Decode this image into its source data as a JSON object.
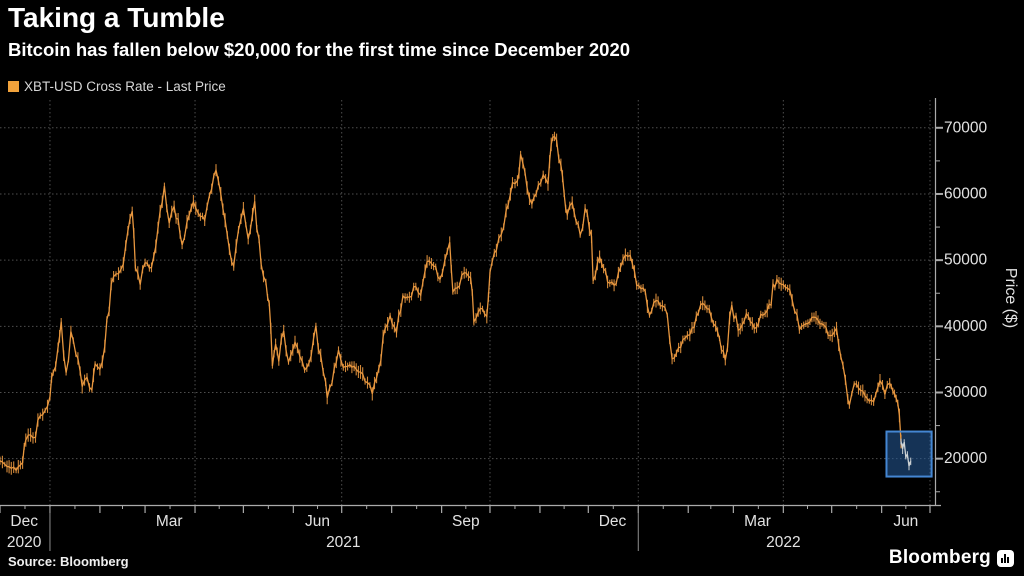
{
  "header": {
    "title": "Taking a Tumble",
    "subtitle": "Bitcoin has fallen below $20,000 for the first time since December 2020"
  },
  "legend": {
    "swatch_color": "#F1A23B",
    "label": "XBT-USD Cross Rate - Last Price"
  },
  "footer": {
    "source": "Source: Bloomberg",
    "brand": "Bloomberg"
  },
  "colors": {
    "background": "#000000",
    "series_orange": "#E8973F",
    "series_recent_gray": "#CDD2D4",
    "grid": "#4E4E4E",
    "axis": "#ABABAB",
    "tick_label": "#E2E2E2",
    "highlight_fill": "rgba(38,92,156,0.55)",
    "highlight_border": "#4486D2"
  },
  "chart_data": {
    "type": "line",
    "title": "XBT-USD Cross Rate - Last Price",
    "xlabel": "",
    "ylabel": "Price ($)",
    "ylim": [
      13000,
      74200
    ],
    "x_range": [
      "2020-12-01",
      "2022-07-01"
    ],
    "grid": true,
    "legend_position": "top-left",
    "y_ticks": [
      20000,
      30000,
      40000,
      50000,
      60000,
      70000
    ],
    "y_minor_ticks": [
      15000,
      25000,
      35000,
      45000,
      55000,
      65000
    ],
    "x_gridlines": [
      "2021-01-01",
      "2021-04-01",
      "2021-07-01",
      "2021-10-01",
      "2022-01-01",
      "2022-04-01",
      "2022-07-01"
    ],
    "x_labels": [
      {
        "text": "Dec",
        "date": "2020-12-16"
      },
      {
        "text": "Mar",
        "date": "2021-03-16"
      },
      {
        "text": "Jun",
        "date": "2021-06-16"
      },
      {
        "text": "Sep",
        "date": "2021-09-16"
      },
      {
        "text": "Dec",
        "date": "2021-12-16"
      },
      {
        "text": "Mar",
        "date": "2022-03-16"
      },
      {
        "text": "Jun",
        "date": "2022-06-16"
      }
    ],
    "x_years": [
      {
        "text": "2020",
        "date": "2020-12-16"
      },
      {
        "text": "2021",
        "date": "2021-07-02"
      },
      {
        "text": "2022",
        "date": "2022-04-01"
      }
    ],
    "year_dividers": [
      "2021-01-01",
      "2022-01-01"
    ],
    "highlight_box": {
      "from": "2022-06-04",
      "to": "2022-07-02",
      "top": 24100,
      "bottom": 17300,
      "note": "drop below $20,000"
    },
    "series": [
      {
        "name": "XBT-USD Cross Rate - Last Price",
        "color": "#E8973F",
        "recent_color": "#CDD2D4",
        "recent_from": "2022-06-13",
        "points": [
          [
            "2020-12-01",
            19700
          ],
          [
            "2020-12-04",
            19150
          ],
          [
            "2020-12-08",
            18550
          ],
          [
            "2020-12-11",
            18250
          ],
          [
            "2020-12-15",
            19400
          ],
          [
            "2020-12-17",
            22800
          ],
          [
            "2020-12-20",
            23600
          ],
          [
            "2020-12-23",
            23250
          ],
          [
            "2020-12-26",
            26500
          ],
          [
            "2020-12-29",
            27300
          ],
          [
            "2021-01-01",
            29400
          ],
          [
            "2021-01-03",
            33000
          ],
          [
            "2021-01-06",
            36800
          ],
          [
            "2021-01-08",
            40700
          ],
          [
            "2021-01-11",
            33000
          ],
          [
            "2021-01-14",
            39200
          ],
          [
            "2021-01-17",
            35800
          ],
          [
            "2021-01-21",
            30900
          ],
          [
            "2021-01-24",
            32300
          ],
          [
            "2021-01-27",
            30400
          ],
          [
            "2021-01-29",
            34300
          ],
          [
            "2021-02-01",
            33500
          ],
          [
            "2021-02-04",
            37000
          ],
          [
            "2021-02-08",
            46400
          ],
          [
            "2021-02-11",
            47900
          ],
          [
            "2021-02-14",
            48600
          ],
          [
            "2021-02-17",
            52200
          ],
          [
            "2021-02-21",
            57400
          ],
          [
            "2021-02-23",
            48800
          ],
          [
            "2021-02-26",
            46300
          ],
          [
            "2021-03-01",
            49600
          ],
          [
            "2021-03-05",
            48900
          ],
          [
            "2021-03-09",
            54900
          ],
          [
            "2021-03-13",
            61200
          ],
          [
            "2021-03-16",
            55600
          ],
          [
            "2021-03-19",
            58100
          ],
          [
            "2021-03-24",
            52300
          ],
          [
            "2021-03-27",
            55800
          ],
          [
            "2021-03-31",
            58800
          ],
          [
            "2021-04-03",
            57100
          ],
          [
            "2021-04-07",
            56000
          ],
          [
            "2021-04-10",
            59800
          ],
          [
            "2021-04-14",
            63600
          ],
          [
            "2021-04-17",
            60000
          ],
          [
            "2021-04-21",
            53800
          ],
          [
            "2021-04-25",
            49100
          ],
          [
            "2021-04-28",
            54600
          ],
          [
            "2021-05-01",
            57800
          ],
          [
            "2021-05-04",
            53200
          ],
          [
            "2021-05-08",
            58900
          ],
          [
            "2021-05-12",
            49400
          ],
          [
            "2021-05-15",
            46700
          ],
          [
            "2021-05-17",
            43500
          ],
          [
            "2021-05-19",
            34000
          ],
          [
            "2021-05-21",
            37300
          ],
          [
            "2021-05-23",
            34700
          ],
          [
            "2021-05-26",
            39300
          ],
          [
            "2021-05-29",
            34600
          ],
          [
            "2021-06-02",
            37600
          ],
          [
            "2021-06-05",
            35500
          ],
          [
            "2021-06-08",
            33400
          ],
          [
            "2021-06-12",
            35500
          ],
          [
            "2021-06-15",
            40100
          ],
          [
            "2021-06-18",
            35600
          ],
          [
            "2021-06-21",
            31600
          ],
          [
            "2021-06-22",
            29200
          ],
          [
            "2021-06-25",
            31400
          ],
          [
            "2021-06-29",
            36400
          ],
          [
            "2021-07-02",
            33800
          ],
          [
            "2021-07-06",
            34200
          ],
          [
            "2021-07-10",
            33500
          ],
          [
            "2021-07-14",
            32800
          ],
          [
            "2021-07-17",
            31500
          ],
          [
            "2021-07-20",
            29800
          ],
          [
            "2021-07-24",
            33600
          ],
          [
            "2021-07-28",
            39700
          ],
          [
            "2021-07-31",
            41600
          ],
          [
            "2021-08-04",
            39100
          ],
          [
            "2021-08-08",
            44600
          ],
          [
            "2021-08-12",
            44400
          ],
          [
            "2021-08-16",
            46000
          ],
          [
            "2021-08-19",
            44700
          ],
          [
            "2021-08-23",
            49800
          ],
          [
            "2021-08-27",
            49100
          ],
          [
            "2021-08-31",
            47100
          ],
          [
            "2021-09-03",
            50000
          ],
          [
            "2021-09-06",
            52700
          ],
          [
            "2021-09-08",
            45200
          ],
          [
            "2021-09-12",
            46100
          ],
          [
            "2021-09-15",
            48100
          ],
          [
            "2021-09-19",
            47300
          ],
          [
            "2021-09-21",
            40700
          ],
          [
            "2021-09-25",
            42700
          ],
          [
            "2021-09-29",
            41500
          ],
          [
            "2021-10-01",
            48200
          ],
          [
            "2021-10-05",
            51500
          ],
          [
            "2021-10-08",
            53900
          ],
          [
            "2021-10-11",
            57500
          ],
          [
            "2021-10-15",
            61700
          ],
          [
            "2021-10-18",
            62000
          ],
          [
            "2021-10-20",
            66000
          ],
          [
            "2021-10-24",
            60900
          ],
          [
            "2021-10-27",
            58500
          ],
          [
            "2021-10-31",
            61300
          ],
          [
            "2021-11-03",
            62900
          ],
          [
            "2021-11-06",
            61500
          ],
          [
            "2021-11-08",
            67500
          ],
          [
            "2021-11-10",
            68700
          ],
          [
            "2021-11-14",
            64400
          ],
          [
            "2021-11-16",
            60100
          ],
          [
            "2021-11-18",
            56900
          ],
          [
            "2021-11-21",
            58700
          ],
          [
            "2021-11-26",
            53800
          ],
          [
            "2021-11-29",
            57800
          ],
          [
            "2021-12-03",
            53600
          ],
          [
            "2021-12-04",
            46900
          ],
          [
            "2021-12-08",
            50500
          ],
          [
            "2021-12-13",
            46700
          ],
          [
            "2021-12-17",
            46200
          ],
          [
            "2021-12-21",
            48900
          ],
          [
            "2021-12-24",
            50800
          ],
          [
            "2021-12-27",
            50700
          ],
          [
            "2021-12-31",
            46200
          ],
          [
            "2022-01-04",
            45800
          ],
          [
            "2022-01-08",
            41700
          ],
          [
            "2022-01-12",
            43900
          ],
          [
            "2022-01-16",
            43100
          ],
          [
            "2022-01-19",
            41700
          ],
          [
            "2022-01-22",
            35100
          ],
          [
            "2022-01-26",
            36800
          ],
          [
            "2022-01-30",
            38200
          ],
          [
            "2022-02-02",
            38700
          ],
          [
            "2022-02-06",
            41500
          ],
          [
            "2022-02-10",
            43500
          ],
          [
            "2022-02-14",
            42600
          ],
          [
            "2022-02-18",
            40000
          ],
          [
            "2022-02-24",
            34900
          ],
          [
            "2022-02-28",
            43200
          ],
          [
            "2022-03-04",
            39400
          ],
          [
            "2022-03-09",
            41900
          ],
          [
            "2022-03-14",
            39700
          ],
          [
            "2022-03-18",
            41800
          ],
          [
            "2022-03-22",
            42400
          ],
          [
            "2022-03-28",
            47100
          ],
          [
            "2022-04-01",
            46300
          ],
          [
            "2022-04-05",
            45500
          ],
          [
            "2022-04-08",
            42300
          ],
          [
            "2022-04-11",
            39500
          ],
          [
            "2022-04-15",
            40400
          ],
          [
            "2022-04-20",
            41400
          ],
          [
            "2022-04-25",
            40400
          ],
          [
            "2022-04-30",
            38600
          ],
          [
            "2022-05-04",
            39700
          ],
          [
            "2022-05-08",
            34100
          ],
          [
            "2022-05-11",
            29000
          ],
          [
            "2022-05-12",
            28100
          ],
          [
            "2022-05-15",
            31300
          ],
          [
            "2022-05-19",
            30300
          ],
          [
            "2022-05-23",
            29100
          ],
          [
            "2022-05-27",
            28600
          ],
          [
            "2022-05-31",
            31800
          ],
          [
            "2022-06-03",
            29700
          ],
          [
            "2022-06-06",
            31400
          ],
          [
            "2022-06-08",
            30200
          ],
          [
            "2022-06-10",
            29100
          ],
          [
            "2022-06-11",
            28400
          ],
          [
            "2022-06-13",
            22600
          ],
          [
            "2022-06-14",
            21500
          ],
          [
            "2022-06-15",
            22500
          ],
          [
            "2022-06-16",
            20300
          ],
          [
            "2022-06-17",
            20600
          ],
          [
            "2022-06-18",
            18900
          ],
          [
            "2022-06-19",
            19600
          ]
        ]
      }
    ]
  }
}
